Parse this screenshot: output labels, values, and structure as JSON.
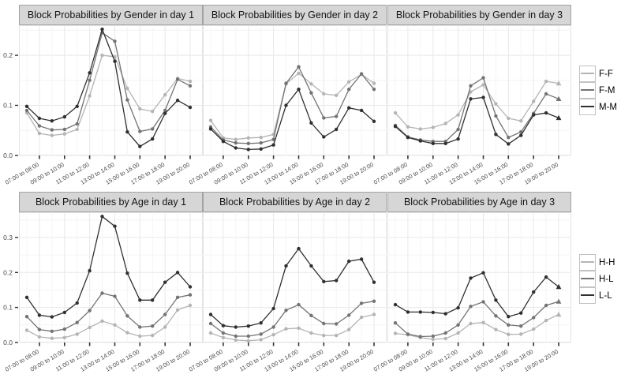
{
  "chart_data": [
    {
      "type": "line",
      "title": "Block Probabilities by Gender in day 1",
      "x_tick_labels": [
        "07:00 to 08:00",
        "09:00 to 10:00",
        "11:00 to 12:00",
        "13:00 to 14:00",
        "15:00 to 16:00",
        "17:00 to 18:00",
        "19:00 to 20:00"
      ],
      "x_points": 14,
      "labeled_point_indices": [
        1,
        3,
        5,
        7,
        9,
        11,
        13
      ],
      "ylim": [
        0,
        0.26
      ],
      "yticks": [
        0,
        0.1,
        0.2
      ],
      "grid": true,
      "legend_position": "right",
      "end_marker": "circle",
      "series": [
        {
          "name": "F-F",
          "color": "#b4b4b4",
          "values": [
            0.085,
            0.044,
            0.04,
            0.043,
            0.052,
            0.119,
            0.2,
            0.197,
            0.134,
            0.093,
            0.088,
            0.121,
            0.154,
            0.148
          ]
        },
        {
          "name": "F-M",
          "color": "#737373",
          "values": [
            0.09,
            0.059,
            0.051,
            0.052,
            0.063,
            0.15,
            0.245,
            0.228,
            0.111,
            0.048,
            0.053,
            0.09,
            0.152,
            0.139
          ]
        },
        {
          "name": "M-M",
          "color": "#303030",
          "values": [
            0.098,
            0.074,
            0.069,
            0.077,
            0.098,
            0.165,
            0.252,
            0.188,
            0.047,
            0.018,
            0.033,
            0.084,
            0.11,
            0.096
          ]
        }
      ]
    },
    {
      "type": "line",
      "title": "Block Probabilities by Gender in day 2",
      "x_tick_labels": [
        "07:00 to 08:00",
        "09:00 to 10:00",
        "11:00 to 12:00",
        "13:00 to 14:00",
        "15:00 to 16:00",
        "17:00 to 18:00",
        "19:00 to 20:00"
      ],
      "x_points": 14,
      "labeled_point_indices": [
        1,
        3,
        5,
        7,
        9,
        11,
        13
      ],
      "ylim": [
        0,
        0.26
      ],
      "yticks": [
        0,
        0.1,
        0.2
      ],
      "grid": true,
      "legend_position": "right",
      "end_marker": "circle",
      "series": [
        {
          "name": "F-F",
          "color": "#b4b4b4",
          "values": [
            0.07,
            0.035,
            0.032,
            0.035,
            0.036,
            0.042,
            0.143,
            0.164,
            0.143,
            0.123,
            0.12,
            0.147,
            0.162,
            0.144
          ]
        },
        {
          "name": "F-M",
          "color": "#737373",
          "values": [
            0.057,
            0.031,
            0.025,
            0.024,
            0.025,
            0.032,
            0.144,
            0.177,
            0.125,
            0.075,
            0.078,
            0.132,
            0.163,
            0.132
          ]
        },
        {
          "name": "M-M",
          "color": "#303030",
          "values": [
            0.053,
            0.028,
            0.015,
            0.012,
            0.013,
            0.021,
            0.1,
            0.132,
            0.065,
            0.037,
            0.052,
            0.095,
            0.09,
            0.068
          ]
        }
      ]
    },
    {
      "type": "line",
      "title": "Block Probabilities by Gender in day 3",
      "x_tick_labels": [
        "07:00 to 08:00",
        "09:00 to 10:00",
        "11:00 to 12:00",
        "13:00 to 14:00",
        "15:00 to 16:00",
        "17:00 to 18:00",
        "19:00 to 20:00"
      ],
      "x_points": 14,
      "labeled_point_indices": [
        1,
        3,
        5,
        7,
        9,
        11,
        13
      ],
      "ylim": [
        0,
        0.26
      ],
      "yticks": [
        0,
        0.1,
        0.2
      ],
      "grid": true,
      "legend_position": "right",
      "end_marker": "triangle",
      "series": [
        {
          "name": "F-F",
          "color": "#b4b4b4",
          "values": [
            0.085,
            0.057,
            0.053,
            0.056,
            0.064,
            0.081,
            0.127,
            0.141,
            0.103,
            0.074,
            0.069,
            0.108,
            0.148,
            0.144
          ]
        },
        {
          "name": "F-M",
          "color": "#737373",
          "values": [
            0.06,
            0.037,
            0.031,
            0.028,
            0.028,
            0.052,
            0.139,
            0.155,
            0.079,
            0.036,
            0.047,
            0.084,
            0.123,
            0.113
          ]
        },
        {
          "name": "M-M",
          "color": "#303030",
          "values": [
            0.058,
            0.036,
            0.029,
            0.024,
            0.024,
            0.033,
            0.113,
            0.116,
            0.042,
            0.023,
            0.04,
            0.081,
            0.085,
            0.075
          ]
        }
      ]
    },
    {
      "type": "line",
      "title": "Block Probabilities by Age in day 1",
      "x_tick_labels": [
        "07:00 to 08:00",
        "09:00 to 10:00",
        "11:00 to 12:00",
        "13:00 to 14:00",
        "15:00 to 16:00",
        "17:00 to 18:00",
        "19:00 to 20:00"
      ],
      "x_points": 14,
      "labeled_point_indices": [
        1,
        3,
        5,
        7,
        9,
        11,
        13
      ],
      "ylim": [
        0,
        0.372
      ],
      "yticks": [
        0,
        0.1,
        0.2,
        0.3
      ],
      "grid": true,
      "legend_position": "right",
      "end_marker": "circle",
      "series": [
        {
          "name": "H-H",
          "color": "#b4b4b4",
          "values": [
            0.035,
            0.016,
            0.012,
            0.014,
            0.024,
            0.043,
            0.061,
            0.05,
            0.028,
            0.018,
            0.02,
            0.044,
            0.093,
            0.106
          ]
        },
        {
          "name": "H-L",
          "color": "#737373",
          "values": [
            0.074,
            0.037,
            0.032,
            0.038,
            0.057,
            0.091,
            0.141,
            0.132,
            0.076,
            0.044,
            0.047,
            0.08,
            0.129,
            0.136
          ]
        },
        {
          "name": "L-L",
          "color": "#303030",
          "values": [
            0.129,
            0.078,
            0.073,
            0.086,
            0.113,
            0.205,
            0.36,
            0.332,
            0.198,
            0.121,
            0.121,
            0.172,
            0.2,
            0.159
          ]
        }
      ]
    },
    {
      "type": "line",
      "title": "Block Probabilities by Age in day 2",
      "x_tick_labels": [
        "07:00 to 08:00",
        "09:00 to 10:00",
        "11:00 to 12:00",
        "13:00 to 14:00",
        "15:00 to 16:00",
        "17:00 to 18:00",
        "19:00 to 20:00"
      ],
      "x_points": 14,
      "labeled_point_indices": [
        1,
        3,
        5,
        7,
        9,
        11,
        13
      ],
      "ylim": [
        0,
        0.372
      ],
      "yticks": [
        0,
        0.1,
        0.2,
        0.3
      ],
      "grid": true,
      "legend_position": "right",
      "end_marker": "circle",
      "series": [
        {
          "name": "H-H",
          "color": "#b4b4b4",
          "values": [
            0.027,
            0.014,
            0.007,
            0.005,
            0.008,
            0.022,
            0.039,
            0.041,
            0.027,
            0.02,
            0.02,
            0.037,
            0.072,
            0.08
          ]
        },
        {
          "name": "H-L",
          "color": "#737373",
          "values": [
            0.054,
            0.027,
            0.018,
            0.018,
            0.024,
            0.044,
            0.092,
            0.108,
            0.077,
            0.054,
            0.053,
            0.078,
            0.112,
            0.118
          ]
        },
        {
          "name": "L-L",
          "color": "#303030",
          "values": [
            0.08,
            0.048,
            0.044,
            0.047,
            0.056,
            0.097,
            0.219,
            0.268,
            0.219,
            0.174,
            0.177,
            0.232,
            0.238,
            0.172
          ]
        }
      ]
    },
    {
      "type": "line",
      "title": "Block Probabilities by Age in day 3",
      "x_tick_labels": [
        "07:00 to 08:00",
        "09:00 to 10:00",
        "11:00 to 12:00",
        "13:00 to 14:00",
        "15:00 to 16:00",
        "17:00 to 18:00",
        "19:00 to 20:00"
      ],
      "x_points": 14,
      "labeled_point_indices": [
        1,
        3,
        5,
        7,
        9,
        11,
        13
      ],
      "ylim": [
        0,
        0.372
      ],
      "yticks": [
        0,
        0.1,
        0.2,
        0.3
      ],
      "grid": true,
      "legend_position": "right",
      "end_marker": "triangle",
      "series": [
        {
          "name": "H-H",
          "color": "#b4b4b4",
          "values": [
            0.026,
            0.022,
            0.014,
            0.009,
            0.011,
            0.027,
            0.054,
            0.057,
            0.037,
            0.023,
            0.024,
            0.038,
            0.063,
            0.08
          ]
        },
        {
          "name": "H-L",
          "color": "#737373",
          "values": [
            0.056,
            0.024,
            0.017,
            0.018,
            0.027,
            0.05,
            0.103,
            0.116,
            0.076,
            0.05,
            0.047,
            0.071,
            0.106,
            0.117
          ]
        },
        {
          "name": "L-L",
          "color": "#303030",
          "values": [
            0.108,
            0.087,
            0.087,
            0.086,
            0.082,
            0.099,
            0.184,
            0.199,
            0.121,
            0.074,
            0.084,
            0.144,
            0.187,
            0.159
          ]
        }
      ]
    }
  ],
  "legends": [
    {
      "entries": [
        {
          "label": "F-F",
          "color": "#b4b4b4"
        },
        {
          "label": "F-M",
          "color": "#737373"
        },
        {
          "label": "M-M",
          "color": "#303030"
        }
      ]
    },
    {
      "entries": [
        {
          "label": "H-H",
          "color": "#b4b4b4"
        },
        {
          "label": "H-L",
          "color": "#737373"
        },
        {
          "label": "L-L",
          "color": "#303030"
        }
      ]
    }
  ],
  "style_colors": {
    "strip_background": "#d6d6d6",
    "strip_border": "#a2a2a2",
    "grid_major": "#e8e8e8",
    "grid_minor": "#f4f4f4",
    "axis_text": "#4a4a4a",
    "tick_mark": "#333333"
  }
}
